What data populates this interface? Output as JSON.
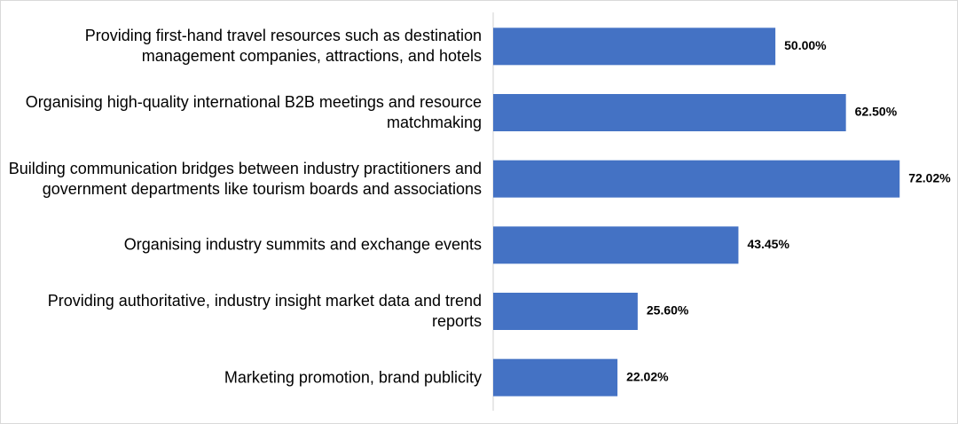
{
  "chart_data": {
    "type": "bar",
    "orientation": "horizontal",
    "categories": [
      "Providing first-hand travel resources such as destination management companies, attractions, and hotels",
      "Organising high-quality international B2B meetings and resource matchmaking",
      "Building communication bridges between industry practitioners and government departments like tourism boards and associations",
      "Organising industry summits and exchange events",
      "Providing authoritative, industry insight market data and trend reports",
      "Marketing promotion, brand publicity"
    ],
    "values": [
      50.0,
      62.5,
      72.02,
      43.45,
      25.6,
      22.02
    ],
    "value_labels": [
      "50.00%",
      "62.50%",
      "72.02%",
      "43.45%",
      "25.60%",
      "22.02%"
    ],
    "color": "#4472c4",
    "xlim": [
      0,
      80
    ]
  }
}
